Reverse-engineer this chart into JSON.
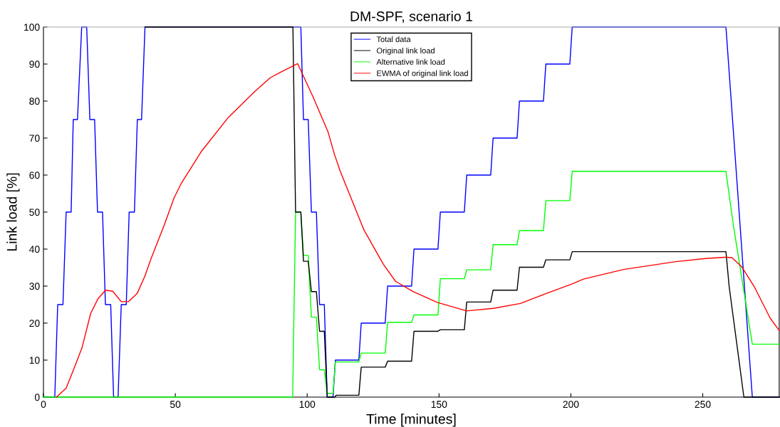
{
  "chart_data": {
    "type": "line",
    "title": "DM-SPF, scenario 1",
    "xlabel": "Time [minutes]",
    "ylabel": "Link load [%]",
    "xlim": [
      0,
      279
    ],
    "xticks": [
      0,
      50,
      100,
      150,
      200,
      250
    ],
    "ylim": [
      0,
      100
    ],
    "yticks": [
      0,
      10,
      20,
      30,
      40,
      50,
      60,
      70,
      80,
      90,
      100
    ],
    "grid": false,
    "legend": "top",
    "marker": "none",
    "line_style": "solid",
    "series": [
      {
        "name": "Total data",
        "color": "#0000ff",
        "x": [
          0,
          4.3,
          5.4,
          7.4,
          8.6,
          10.5,
          11.3,
          12.9,
          14.5,
          16.4,
          17.6,
          19.4,
          20.5,
          22.4,
          23.5,
          25.5,
          26.6,
          28.3,
          29.5,
          31.4,
          32.5,
          34.5,
          35.6,
          37.2,
          38.5,
          97.6,
          98.6,
          100.4,
          101.6,
          103.5,
          104.7,
          106.5,
          107.6,
          109.8,
          110.7,
          119.6,
          120.5,
          129.6,
          130.5,
          139.6,
          140.5,
          149.6,
          150.5,
          159.6,
          160.5,
          169.6,
          170.5,
          179.6,
          180.5,
          189.6,
          190.5,
          199.6,
          200.5,
          258.8,
          268.8,
          279
        ],
        "values": [
          0,
          0,
          25,
          25,
          50,
          50,
          75,
          75,
          100,
          100,
          75,
          75,
          50,
          50,
          25,
          25,
          0,
          0,
          25,
          25,
          50,
          50,
          75,
          75,
          100,
          100,
          75,
          75,
          50,
          50,
          25,
          25,
          0,
          0,
          10,
          10,
          20,
          20,
          30,
          30,
          40,
          40,
          50,
          50,
          60,
          60,
          70,
          70,
          80,
          80,
          90,
          90,
          100,
          100,
          0,
          0
        ]
      },
      {
        "name": "Original link load",
        "color": "#000000",
        "x": [
          38.5,
          94.6,
          95.6,
          97.6,
          98.6,
          100.4,
          101.6,
          103.5,
          104.7,
          106.5,
          107.6,
          110.5,
          111,
          119.6,
          120.5,
          129.6,
          130.5,
          139.6,
          140.5,
          149.6,
          150.5,
          159.6,
          160.5,
          169.6,
          170.5,
          179.6,
          180.5,
          189.6,
          190.5,
          199.6,
          200.5,
          258.8,
          260,
          265.6,
          279
        ],
        "values": [
          100,
          100,
          50,
          50,
          36.7,
          36.7,
          28.5,
          28.5,
          17.8,
          17.8,
          0,
          0,
          0.5,
          0.5,
          8.1,
          8.1,
          9.7,
          9.7,
          17.8,
          17.8,
          18.2,
          18.2,
          25.7,
          25.7,
          28.9,
          28.9,
          35.1,
          35.1,
          37.1,
          37.1,
          39.3,
          39.3,
          30,
          0,
          0
        ]
      },
      {
        "name": "Alternative link load",
        "color": "#00ff00",
        "x": [
          0,
          94.5,
          95.6,
          97.6,
          98.6,
          100.4,
          101.6,
          103.5,
          104.7,
          106.5,
          107.6,
          109.8,
          110.7,
          119.6,
          120.5,
          129.6,
          130.5,
          139.6,
          140.5,
          149.6,
          150.5,
          159.6,
          160.5,
          169.6,
          170.5,
          179.6,
          180.5,
          189.6,
          190.5,
          199.6,
          200.5,
          258.8,
          261.6,
          268.8,
          279
        ],
        "values": [
          0,
          0,
          50,
          50,
          38.3,
          38.3,
          21.6,
          21.6,
          7.4,
          7.4,
          1,
          1,
          9.5,
          9.5,
          11.9,
          11.9,
          20.2,
          20.2,
          22.2,
          22.2,
          32,
          32,
          34.4,
          34.4,
          41.2,
          41.2,
          45,
          45,
          53.1,
          53.1,
          61,
          61,
          46.5,
          14.3,
          14.3
        ]
      },
      {
        "name": "EWMA of original link load",
        "color": "#ff0000",
        "x": [
          4.9,
          8.6,
          11.4,
          14.6,
          17.9,
          20.7,
          23.5,
          26.3,
          29.5,
          32.3,
          35.6,
          38.4,
          40.7,
          45.8,
          49.5,
          52.3,
          60,
          70,
          80,
          86,
          89.7,
          96.4,
          102.3,
          107.9,
          110.3,
          112.5,
          115.9,
          121.5,
          128.9,
          133.5,
          140,
          149.3,
          160.5,
          170.7,
          180.9,
          190.3,
          200.5,
          204.8,
          220,
          239.8,
          251.8,
          258.4,
          261.1,
          264.8,
          269.5,
          275.6,
          279
        ],
        "values": [
          0,
          2.4,
          7.4,
          13.3,
          22.6,
          26.6,
          28.9,
          28.6,
          25.8,
          25.8,
          28.1,
          32.6,
          37.2,
          46.5,
          53.8,
          57.8,
          66.5,
          75.5,
          82.5,
          86.3,
          87.7,
          90.1,
          81,
          71.7,
          65.7,
          61.1,
          55.1,
          45.2,
          35.9,
          31.3,
          28.6,
          25.6,
          23.3,
          24,
          25.3,
          27.9,
          30.6,
          31.9,
          34.5,
          36.6,
          37.5,
          37.8,
          37.7,
          35.2,
          29.9,
          21.3,
          18
        ]
      }
    ]
  }
}
